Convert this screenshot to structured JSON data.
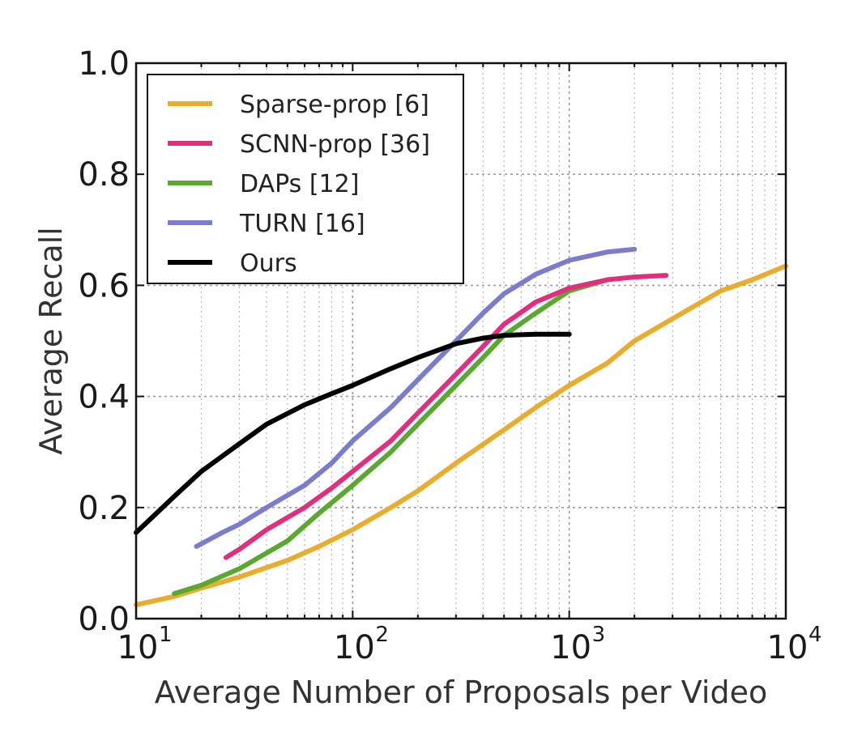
{
  "chart_data": {
    "type": "line",
    "xlabel": "Average Number of Proposals per Video",
    "ylabel": "Average Recall",
    "xscale": "log",
    "xlim": [
      10,
      10000
    ],
    "ylim": [
      0.0,
      1.0
    ],
    "grid": true,
    "legend_position": "top-left",
    "x_ticks": [
      {
        "base": "10",
        "exp": "1"
      },
      {
        "base": "10",
        "exp": "2"
      },
      {
        "base": "10",
        "exp": "3"
      },
      {
        "base": "10",
        "exp": "4"
      }
    ],
    "y_ticks": [
      "0.0",
      "0.2",
      "0.4",
      "0.6",
      "0.8",
      "1.0"
    ],
    "series": [
      {
        "name": "Sparse-prop [6]",
        "color": "#e8ac2e",
        "points": [
          [
            10,
            0.025
          ],
          [
            15,
            0.04
          ],
          [
            20,
            0.055
          ],
          [
            30,
            0.075
          ],
          [
            50,
            0.105
          ],
          [
            70,
            0.13
          ],
          [
            100,
            0.16
          ],
          [
            150,
            0.2
          ],
          [
            200,
            0.23
          ],
          [
            300,
            0.28
          ],
          [
            500,
            0.34
          ],
          [
            700,
            0.38
          ],
          [
            1000,
            0.42
          ],
          [
            1500,
            0.46
          ],
          [
            2000,
            0.5
          ],
          [
            3000,
            0.54
          ],
          [
            5000,
            0.59
          ],
          [
            7000,
            0.61
          ],
          [
            10000,
            0.635
          ]
        ]
      },
      {
        "name": "SCNN-prop [36]",
        "color": "#e02f7e",
        "points": [
          [
            26,
            0.11
          ],
          [
            30,
            0.125
          ],
          [
            40,
            0.16
          ],
          [
            60,
            0.2
          ],
          [
            80,
            0.235
          ],
          [
            100,
            0.265
          ],
          [
            150,
            0.32
          ],
          [
            200,
            0.37
          ],
          [
            300,
            0.44
          ],
          [
            400,
            0.49
          ],
          [
            500,
            0.53
          ],
          [
            700,
            0.57
          ],
          [
            1000,
            0.595
          ],
          [
            1500,
            0.61
          ],
          [
            2000,
            0.615
          ],
          [
            2800,
            0.618
          ]
        ]
      },
      {
        "name": "DAPs [12]",
        "color": "#5aa830",
        "points": [
          [
            15,
            0.045
          ],
          [
            20,
            0.06
          ],
          [
            30,
            0.09
          ],
          [
            50,
            0.14
          ],
          [
            70,
            0.19
          ],
          [
            100,
            0.24
          ],
          [
            150,
            0.3
          ],
          [
            200,
            0.35
          ],
          [
            300,
            0.42
          ],
          [
            400,
            0.47
          ],
          [
            500,
            0.51
          ],
          [
            700,
            0.55
          ],
          [
            1000,
            0.59
          ],
          [
            1500,
            0.61
          ]
        ]
      },
      {
        "name": "TURN [16]",
        "color": "#7b7dcc",
        "points": [
          [
            19,
            0.13
          ],
          [
            25,
            0.155
          ],
          [
            30,
            0.17
          ],
          [
            40,
            0.2
          ],
          [
            60,
            0.24
          ],
          [
            80,
            0.28
          ],
          [
            100,
            0.32
          ],
          [
            150,
            0.38
          ],
          [
            200,
            0.43
          ],
          [
            300,
            0.5
          ],
          [
            400,
            0.55
          ],
          [
            500,
            0.585
          ],
          [
            700,
            0.62
          ],
          [
            1000,
            0.645
          ],
          [
            1500,
            0.66
          ],
          [
            2000,
            0.665
          ]
        ]
      },
      {
        "name": "Ours",
        "color": "#000000",
        "points": [
          [
            10,
            0.155
          ],
          [
            15,
            0.22
          ],
          [
            20,
            0.265
          ],
          [
            30,
            0.315
          ],
          [
            40,
            0.35
          ],
          [
            60,
            0.385
          ],
          [
            80,
            0.405
          ],
          [
            100,
            0.42
          ],
          [
            150,
            0.45
          ],
          [
            200,
            0.47
          ],
          [
            300,
            0.495
          ],
          [
            400,
            0.505
          ],
          [
            500,
            0.51
          ],
          [
            700,
            0.512
          ],
          [
            1000,
            0.512
          ]
        ]
      }
    ]
  }
}
